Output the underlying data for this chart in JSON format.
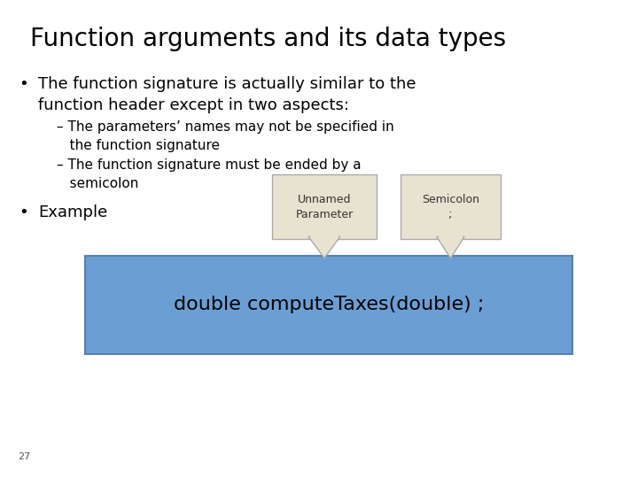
{
  "title": "Function arguments and its data types",
  "bullet1_line1": "The function signature is actually similar to the",
  "bullet1_line2": "function header except in two aspects:",
  "sub1_line1": "– The parameters’ names may not be specified in",
  "sub1_line2": "   the function signature",
  "sub2_line1": "– The function signature must be ended by a",
  "sub2_line2": "   semicolon",
  "bullet2": "Example",
  "code_text": "double computeTaxes(double) ;",
  "callout1_text": "Unnamed\nParameter",
  "callout2_text": "Semicolon\n;",
  "page_num": "27",
  "bg_color": "#ffffff",
  "title_color": "#000000",
  "body_color": "#000000",
  "code_bg": "#6b9fd4",
  "code_text_color": "#000000",
  "callout_bg": "#e8e3d0",
  "callout_border": "#aaaaaa",
  "title_fontsize": 20,
  "body_fontsize": 13,
  "sub_fontsize": 11,
  "code_fontsize": 16,
  "callout_fontsize": 9
}
